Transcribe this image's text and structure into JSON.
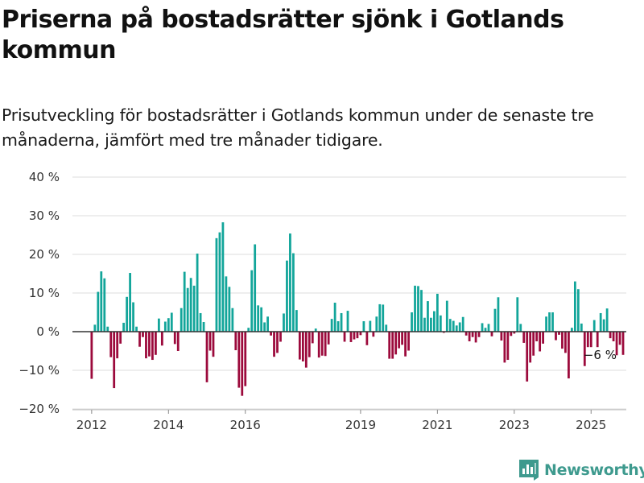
{
  "title": "Priserna på bostadsrätter sjönk i Gotlands kommun",
  "subtitle": "Prisutveckling för bostadsrätter i Gotlands kommun under de senaste tre månaderna, jämfört med tre månader tidigare.",
  "brand": {
    "name": "Newsworthy",
    "color": "#3e9a8e"
  },
  "colors": {
    "positive": "#12a59a",
    "negative": "#9c0a3c",
    "grid": "#dddddd",
    "zero_line": "#333333"
  },
  "chart_data": {
    "type": "bar",
    "title": "Priserna på bostadsrätter sjönk i Gotlands kommun",
    "subtitle": "Prisutveckling för bostadsrätter i Gotlands kommun under de senaste tre månaderna, jämfört med tre månader tidigare.",
    "x_axis": {
      "type": "time",
      "unit": "month",
      "range": [
        "2011-07",
        "2025-12"
      ],
      "tick_labels": [
        "2012",
        "2014",
        "2016",
        "2019",
        "2021",
        "2023",
        "2025"
      ]
    },
    "y_axis": {
      "unit": "%",
      "range": [
        -20,
        40
      ],
      "ticks": [
        -20,
        -10,
        0,
        10,
        20,
        30,
        40
      ],
      "tick_labels": [
        "−20 %",
        "−10 %",
        "0 %",
        "10 %",
        "20 %",
        "30 %",
        "40 %"
      ]
    },
    "grid": true,
    "legend": "none",
    "start_month": "2012-01",
    "values": [
      -12.2,
      1.8,
      10.3,
      15.6,
      13.8,
      1.3,
      -6.6,
      -14.6,
      -6.9,
      -3.1,
      2.3,
      9,
      15.2,
      7.6,
      1.3,
      -3.9,
      -1.4,
      -6.9,
      -6.4,
      -7.3,
      -6,
      3.4,
      -3.6,
      2.6,
      3.5,
      4.9,
      -3.2,
      -5,
      6.1,
      15.5,
      11.3,
      13.9,
      11.9,
      20.2,
      4.8,
      2.5,
      -13.1,
      -4.9,
      -6.5,
      24.2,
      25.7,
      28.3,
      14.3,
      11.6,
      6.1,
      -4.8,
      -14.5,
      -16.6,
      -14.1,
      1,
      15.9,
      22.6,
      6.8,
      6.3,
      2.4,
      3.9,
      -1,
      -6.5,
      -5.5,
      -2.6,
      4.7,
      18.4,
      25.4,
      20.3,
      5.6,
      -7.2,
      -7.7,
      -9.3,
      -6.6,
      -3,
      0.8,
      -6.7,
      -6.2,
      -6.3,
      -3.3,
      3.3,
      7.5,
      2.7,
      4.8,
      -2.6,
      5.4,
      -2.7,
      -2,
      -1.7,
      -0.9,
      2.7,
      -3.5,
      2.8,
      -1.3,
      3.9,
      7.1,
      7,
      1.8,
      -7,
      -7,
      -5.9,
      -4.3,
      -3.4,
      -6.4,
      -4.9,
      5,
      11.9,
      11.8,
      10.8,
      3.6,
      7.9,
      3.6,
      5.3,
      9.8,
      4.2,
      -0.3,
      8,
      3.3,
      2.8,
      1.6,
      2.4,
      3.8,
      -1,
      -2.5,
      -1.4,
      -2.8,
      -1.4,
      2.2,
      1,
      2,
      -1.2,
      5.9,
      8.9,
      -2.3,
      -8,
      -7.3,
      -1.1,
      -0.5,
      8.9,
      2,
      -2.9,
      -12.9,
      -8,
      -6.2,
      -2.5,
      -5.1,
      -3.1,
      3.9,
      5,
      5,
      -2.2,
      -0.8,
      -4.4,
      -5.5,
      -12.1,
      1,
      13,
      11,
      2.1,
      -8.9,
      -4,
      -4,
      3,
      -4,
      4.8,
      3.2,
      6,
      -1.7,
      -2.5,
      -6.1,
      -3.4,
      -6
    ]
  },
  "annotation": {
    "end_label": "−6 %"
  }
}
